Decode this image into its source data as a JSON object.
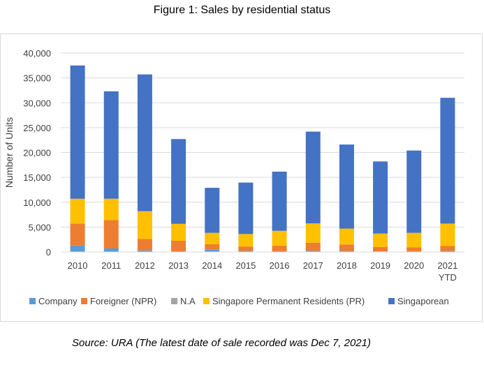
{
  "figure_title": "Figure 1: Sales by residential status",
  "source_note": "Source: URA (The latest date of sale recorded was Dec 7, 2021)",
  "chart_data": {
    "type": "bar",
    "stacked": true,
    "title": "",
    "xlabel": "",
    "ylabel": "Number of Units",
    "ylim": [
      0,
      40000
    ],
    "yticks": [
      0,
      5000,
      10000,
      15000,
      20000,
      25000,
      30000,
      35000,
      40000
    ],
    "ytick_labels": [
      "0",
      "5,000",
      "10,000",
      "15,000",
      "20,000",
      "25,000",
      "30,000",
      "35,000",
      "40,000"
    ],
    "categories": [
      [
        "2010"
      ],
      [
        "2011"
      ],
      [
        "2012"
      ],
      [
        "2013"
      ],
      [
        "2014"
      ],
      [
        "2015"
      ],
      [
        "2016"
      ],
      [
        "2017"
      ],
      [
        "2018"
      ],
      [
        "2019"
      ],
      [
        "2020"
      ],
      [
        "2021",
        "YTD"
      ]
    ],
    "legend_position": "bottom",
    "grid": true,
    "series": [
      {
        "name": "Company",
        "color": "#5b9bd5",
        "values": [
          1300,
          700,
          300,
          150,
          450,
          200,
          150,
          250,
          200,
          100,
          150,
          200
        ]
      },
      {
        "name": "Foreigner (NPR)",
        "color": "#ed7d31",
        "values": [
          4400,
          5700,
          2300,
          2100,
          1100,
          900,
          1100,
          1600,
          1300,
          900,
          800,
          1000
        ]
      },
      {
        "name": "N.A",
        "color": "#a5a5a5",
        "values": [
          0,
          0,
          0,
          0,
          0,
          0,
          0,
          0,
          0,
          0,
          0,
          0
        ]
      },
      {
        "name": "Singapore Permanent Residents (PR)",
        "color": "#ffc000",
        "values": [
          5000,
          4300,
          5600,
          3400,
          2300,
          2500,
          3000,
          3900,
          3200,
          2700,
          2900,
          4500
        ]
      },
      {
        "name": "Singaporean",
        "color": "#4472c4",
        "values": [
          26800,
          21600,
          27500,
          17050,
          9050,
          10350,
          11900,
          18450,
          16900,
          14500,
          16550,
          25300
        ]
      }
    ]
  }
}
